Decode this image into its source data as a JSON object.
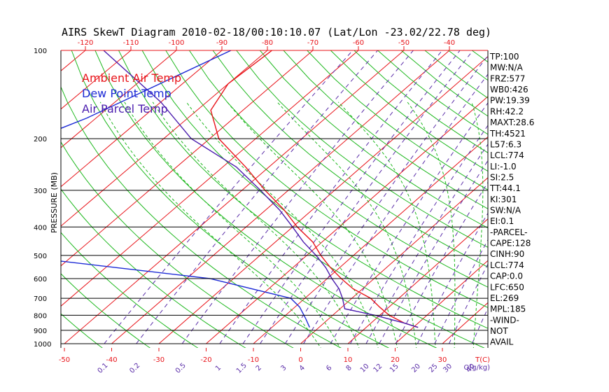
{
  "chart_data": {
    "type": "line",
    "title": "AIRS SkewT Diagram 2010-02-18/00:10:10.07 (Lat/Lon -23.02/22.78 deg)",
    "ylabel": "PRESSURE (MB)",
    "x_unit_label": "T(C)",
    "mixing_unit_label": "Q(g/kg)",
    "pressure_ticks": [
      100,
      200,
      300,
      400,
      500,
      600,
      700,
      800,
      900,
      1000
    ],
    "top_temp_ticks": [
      -120,
      -110,
      -100,
      -90,
      -80,
      -70,
      -60,
      -50,
      -40
    ],
    "bottom_temp_ticks": [
      -50,
      -40,
      -30,
      -20,
      -10,
      0,
      10,
      20,
      30
    ],
    "mixing_ratio_ticks": [
      "0.1",
      "0.2",
      "0.5",
      "1",
      "1.5",
      "2",
      "3",
      "4",
      "6",
      "8",
      "10",
      "12",
      "15",
      "20",
      "25",
      "30",
      "40"
    ],
    "legend": [
      {
        "label": "Ambient Air Temp",
        "color": "#e8141a"
      },
      {
        "label": "Dew Point Temp",
        "color": "#1d2bd6"
      },
      {
        "label": "Air Parcel Temp",
        "color": "#4b1dae"
      }
    ],
    "series": [
      {
        "name": "Ambient Air Temp",
        "color": "#e8141a",
        "points": [
          {
            "p": 100,
            "t": -79
          },
          {
            "p": 130,
            "t": -80
          },
          {
            "p": 160,
            "t": -77
          },
          {
            "p": 200,
            "t": -68
          },
          {
            "p": 250,
            "t": -55
          },
          {
            "p": 300,
            "t": -45
          },
          {
            "p": 350,
            "t": -36
          },
          {
            "p": 400,
            "t": -29
          },
          {
            "p": 450,
            "t": -22
          },
          {
            "p": 500,
            "t": -17
          },
          {
            "p": 550,
            "t": -12
          },
          {
            "p": 600,
            "t": -7
          },
          {
            "p": 650,
            "t": -2
          },
          {
            "p": 700,
            "t": 4
          },
          {
            "p": 750,
            "t": 8
          },
          {
            "p": 800,
            "t": 12
          },
          {
            "p": 850,
            "t": 17
          },
          {
            "p": 880,
            "t": 21
          }
        ]
      },
      {
        "name": "Dew Point Temp",
        "color": "#1d2bd6",
        "points": [
          {
            "p": 100,
            "t": -88
          },
          {
            "p": 170,
            "t": -102
          },
          {
            "p": 200,
            "t": -108
          },
          {
            "p": 250,
            "t": -113
          },
          {
            "p": 300,
            "t": -129
          },
          {
            "p": 350,
            "t": -136
          },
          {
            "p": 400,
            "t": -140
          },
          {
            "p": 500,
            "t": -83
          },
          {
            "p": 600,
            "t": -35
          },
          {
            "p": 700,
            "t": -13
          },
          {
            "p": 750,
            "t": -9
          },
          {
            "p": 820,
            "t": -5
          },
          {
            "p": 880,
            "t": -2
          }
        ]
      },
      {
        "name": "Air Parcel Temp",
        "color": "#4b1dae",
        "points": [
          {
            "p": 100,
            "t": -116
          },
          {
            "p": 150,
            "t": -90
          },
          {
            "p": 200,
            "t": -74
          },
          {
            "p": 250,
            "t": -57
          },
          {
            "p": 300,
            "t": -46
          },
          {
            "p": 350,
            "t": -37
          },
          {
            "p": 400,
            "t": -30
          },
          {
            "p": 450,
            "t": -24
          },
          {
            "p": 500,
            "t": -18
          },
          {
            "p": 550,
            "t": -13
          },
          {
            "p": 600,
            "t": -9
          },
          {
            "p": 650,
            "t": -5
          },
          {
            "p": 700,
            "t": -2
          },
          {
            "p": 760,
            "t": 1
          },
          {
            "p": 800,
            "t": 9
          },
          {
            "p": 850,
            "t": 17
          },
          {
            "p": 880,
            "t": 21
          }
        ]
      }
    ],
    "indices": [
      "TP:100",
      "MW:N/A",
      "FRZ:577",
      "WB0:426",
      "PW:19.39",
      "RH:42.2",
      "MAXT:28.6",
      "TH:4521",
      "L57:6.3",
      "LCL:774",
      "LI:-1.0",
      "SI:2.5",
      "TT:44.1",
      "KI:301",
      "SW:N/A",
      "EI:0.1",
      "-PARCEL-",
      "CAPE:128",
      "CINH:90",
      "LCL:774",
      "CAP:0.0",
      "LFC:650",
      "EL:269",
      "MPL:185",
      "-WIND-",
      "NOT",
      "AVAIL"
    ],
    "colors": {
      "isotherm": "#e8141a",
      "dry_adiabat": "#1fb81f",
      "moist_adiabat": "#1fb81f",
      "mixing_ratio": "#5a2da8",
      "isobar": "#000000",
      "top_axis": "#e8141a",
      "bottom_axis": "#e8141a",
      "mixing_axis": "#5a2da8"
    }
  }
}
